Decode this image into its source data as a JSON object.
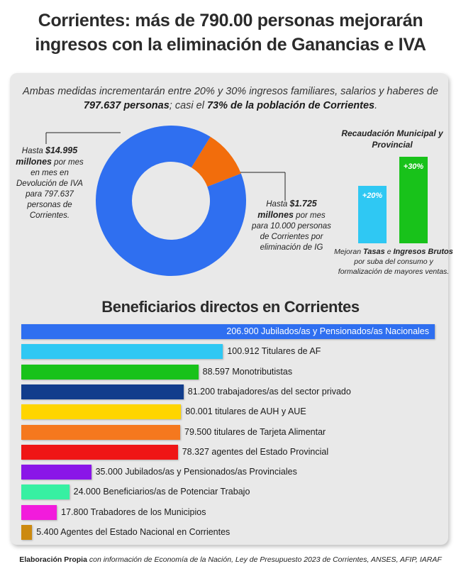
{
  "headline": {
    "line1": "Corrientes: más de 790.00 personas mejorarán",
    "line2": "ingresos con la eliminación de Ganancias e IVA"
  },
  "intro": {
    "part1": "Ambas medidas incrementarán entre 20% y 30% ingresos familiares, salarios y haberes de ",
    "bold1": "797.637 personas",
    "part2": "; casi el ",
    "bold2": "73% de la población de Corrientes",
    "part3": "."
  },
  "donut": {
    "left_note_prefix": "Hasta ",
    "left_note_bold": "$14.995 millones",
    "left_note_rest": " por mes en mes en Devolución de IVA para 797.637 personas de Corrientes.",
    "right_note_prefix": "Hasta ",
    "right_note_bold": "$1.725 millones",
    "right_note_rest": " por mes para 10.000 personas de Corrientes por eliminación de IG"
  },
  "recaudacion": {
    "title": "Recaudación Municipal y Provincial",
    "note_pre": "Mejoran ",
    "note_b1": "Tasas",
    "note_mid": " e ",
    "note_b2": "Ingresos Brutos",
    "note_post": " por suba del consumo y formalización de mayores ventas."
  },
  "section_title": "Beneficiarios directos en Corrientes",
  "footer": {
    "bold": "Elaboración Propia",
    "rest": " con información de Economía de la Nación, Ley de Presupuesto 2023 de Corrientes, ANSES, AFIP, IARAF"
  },
  "chart_data": [
    {
      "type": "pie",
      "style": "donut",
      "slices": [
        {
          "label": "Devolución de IVA",
          "value": 14995,
          "color": "#2f6ff0"
        },
        {
          "label": "Eliminación de IG",
          "value": 1725,
          "color": "#f26d0c"
        }
      ],
      "unit": "millones $ por mes"
    },
    {
      "type": "bar",
      "categories": [
        "Tasas",
        "Ingresos Brutos"
      ],
      "values": [
        20,
        30
      ],
      "data_labels": [
        "+20%",
        "+30%"
      ],
      "colors": [
        "#2fc8f3",
        "#18c21a"
      ],
      "ylim": [
        0,
        30
      ]
    },
    {
      "type": "bar",
      "orientation": "horizontal",
      "title": "Beneficiarios directos en Corrientes",
      "categories": [
        "Jubilados/as y Pensionados/as Nacionales",
        "Titulares de AF",
        "Monotributistas",
        "trabajadores/as del sector privado",
        "titulares de AUH y AUE",
        "titulares de Tarjeta Alimentar",
        "agentes del Estado Provincial",
        "Jubilados/as y Pensionados/as Provinciales",
        "Beneficiarios/as de Potenciar Trabajo",
        "Trabadores de los Municipios",
        "Agentes del Estado Nacional en Corrientes"
      ],
      "values": [
        206900,
        100912,
        88597,
        81200,
        80001,
        79500,
        78327,
        35000,
        24000,
        17800,
        5400
      ],
      "value_labels": [
        "206.900",
        "100.912",
        "88.597",
        "81.200",
        "80.001",
        "79.500",
        "78.327",
        "35.000",
        "24.000",
        "17.800",
        "5.400"
      ],
      "colors": [
        "#2f6ff0",
        "#2fc8f3",
        "#18c21a",
        "#123d8c",
        "#ffd500",
        "#f5781e",
        "#ef1515",
        "#8a16e8",
        "#37f0a2",
        "#f21bdc",
        "#cc8a10"
      ],
      "xlim": [
        0,
        206900
      ]
    }
  ]
}
